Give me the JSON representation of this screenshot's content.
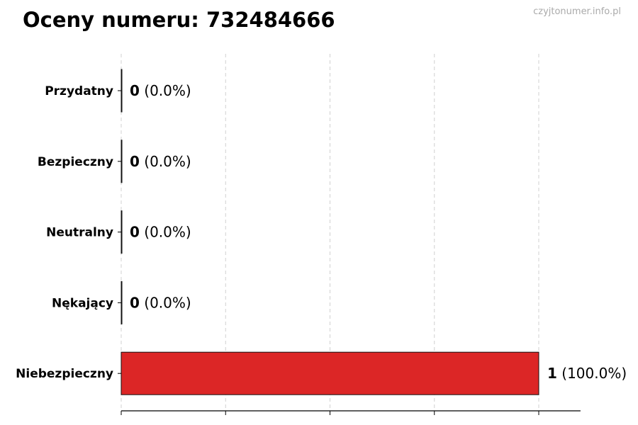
{
  "title": "Oceny numeru: 732484666",
  "watermark": "czyjtonumer.info.pl",
  "chart_data": {
    "type": "bar",
    "orientation": "horizontal",
    "title": "Oceny numeru: 732484666",
    "categories": [
      "Przydatny",
      "Bezpieczny",
      "Neutralny",
      "Nękający",
      "Niebezpieczny"
    ],
    "values": [
      0,
      0,
      0,
      0,
      1
    ],
    "labels": [
      "(0.0%)",
      "(0.0%)",
      "(0.0%)",
      "(0.0%)",
      "(100.0%)"
    ],
    "colors": [
      "#888888",
      "#888888",
      "#888888",
      "#888888",
      "#dc2626"
    ],
    "xlim": [
      0,
      1.1
    ],
    "xticks": [
      0,
      0.25,
      0.5,
      0.75,
      1
    ],
    "xtick_labels_shown": false,
    "grid": "vertical dashed",
    "xlabel": "",
    "ylabel": ""
  }
}
